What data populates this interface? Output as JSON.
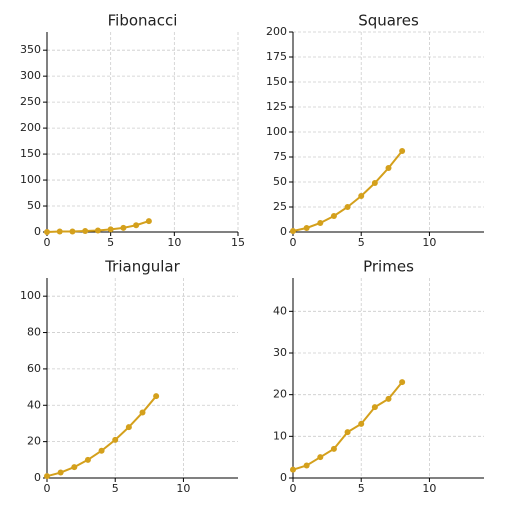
{
  "chart_data": [
    {
      "type": "line",
      "title": "Fibonacci",
      "x": [
        0,
        1,
        2,
        3,
        4,
        5,
        6,
        7,
        8
      ],
      "values": [
        0,
        1,
        1,
        2,
        3,
        5,
        8,
        13,
        21
      ],
      "color": "#d4a01c",
      "xlim": [
        0,
        15
      ],
      "ylim": [
        0,
        385
      ],
      "xticks": [
        0,
        5,
        10,
        15
      ],
      "yticks": [
        0,
        50,
        100,
        150,
        200,
        250,
        300,
        350
      ],
      "grid": true
    },
    {
      "type": "line",
      "title": "Squares",
      "x": [
        0,
        1,
        2,
        3,
        4,
        5,
        6,
        7,
        8
      ],
      "values": [
        1,
        4,
        9,
        16,
        25,
        36,
        49,
        64,
        81
      ],
      "color": "#d4a01c",
      "xlim": [
        0,
        14
      ],
      "ylim": [
        0,
        200
      ],
      "xticks": [
        0,
        5,
        10
      ],
      "yticks": [
        0,
        25,
        50,
        75,
        100,
        125,
        150,
        175,
        200
      ],
      "grid": true
    },
    {
      "type": "line",
      "title": "Triangular",
      "x": [
        0,
        1,
        2,
        3,
        4,
        5,
        6,
        7,
        8
      ],
      "values": [
        1,
        3,
        6,
        10,
        15,
        21,
        28,
        36,
        45
      ],
      "color": "#d4a01c",
      "xlim": [
        0,
        14
      ],
      "ylim": [
        0,
        110
      ],
      "xticks": [
        0,
        5,
        10
      ],
      "yticks": [
        0,
        20,
        40,
        60,
        80,
        100
      ],
      "grid": true
    },
    {
      "type": "line",
      "title": "Primes",
      "x": [
        0,
        1,
        2,
        3,
        4,
        5,
        6,
        7,
        8
      ],
      "values": [
        2,
        3,
        5,
        7,
        11,
        13,
        17,
        19,
        23
      ],
      "color": "#d4a01c",
      "xlim": [
        0,
        14
      ],
      "ylim": [
        0,
        48
      ],
      "xticks": [
        0,
        5,
        10
      ],
      "yticks": [
        0,
        10,
        20,
        30,
        40
      ],
      "grid": true
    }
  ]
}
